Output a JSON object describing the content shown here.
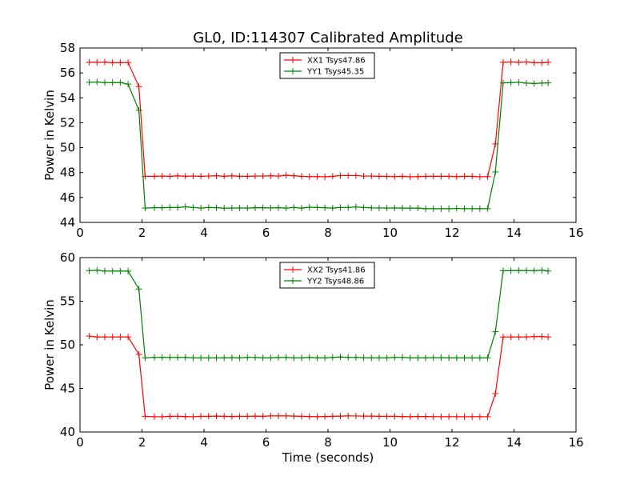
{
  "figure_title": "GL0, ID:114307 Calibrated Amplitude",
  "chart_data": [
    {
      "type": "line",
      "title": "GL0, ID:114307 Calibrated Amplitude",
      "xlabel": "",
      "ylabel": "Power in Kelvin",
      "xlim": [
        0,
        16
      ],
      "ylim": [
        44,
        58
      ],
      "xticks": [
        0,
        2,
        4,
        6,
        8,
        10,
        12,
        14,
        16
      ],
      "yticks": [
        44,
        46,
        48,
        50,
        52,
        54,
        56,
        58
      ],
      "legend_position": "top-center",
      "x": [
        0.3,
        0.55,
        0.8,
        1.05,
        1.3,
        1.55,
        1.9,
        2.1,
        2.4,
        2.65,
        2.9,
        3.15,
        3.4,
        3.65,
        3.9,
        4.15,
        4.4,
        4.65,
        4.9,
        5.15,
        5.4,
        5.65,
        5.9,
        6.15,
        6.4,
        6.65,
        6.9,
        7.15,
        7.4,
        7.65,
        7.9,
        8.15,
        8.4,
        8.65,
        8.9,
        9.15,
        9.4,
        9.65,
        9.9,
        10.15,
        10.4,
        10.65,
        10.9,
        11.15,
        11.4,
        11.65,
        11.9,
        12.15,
        12.4,
        12.65,
        12.9,
        13.15,
        13.4,
        13.65,
        13.9,
        14.15,
        14.4,
        14.65,
        14.9,
        15.1
      ],
      "series": [
        {
          "name": "XX1 Tsys47.86",
          "color": "#ff0000",
          "values": [
            56.85,
            56.85,
            56.86,
            56.82,
            56.82,
            56.84,
            54.9,
            47.7,
            47.7,
            47.72,
            47.7,
            47.74,
            47.7,
            47.72,
            47.7,
            47.72,
            47.74,
            47.7,
            47.74,
            47.7,
            47.7,
            47.72,
            47.72,
            47.74,
            47.72,
            47.78,
            47.74,
            47.7,
            47.68,
            47.68,
            47.66,
            47.7,
            47.76,
            47.76,
            47.76,
            47.72,
            47.72,
            47.7,
            47.7,
            47.68,
            47.7,
            47.66,
            47.68,
            47.7,
            47.7,
            47.7,
            47.7,
            47.68,
            47.7,
            47.7,
            47.66,
            47.68,
            50.3,
            56.85,
            56.88,
            56.85,
            56.88,
            56.82,
            56.82,
            56.85
          ]
        },
        {
          "name": "YY1 Tsys45.35",
          "color": "#008000",
          "values": [
            55.25,
            55.27,
            55.22,
            55.22,
            55.23,
            55.1,
            53.0,
            45.15,
            45.18,
            45.18,
            45.2,
            45.2,
            45.25,
            45.2,
            45.15,
            45.2,
            45.18,
            45.15,
            45.15,
            45.16,
            45.15,
            45.17,
            45.18,
            45.16,
            45.18,
            45.15,
            45.2,
            45.15,
            45.22,
            45.2,
            45.18,
            45.15,
            45.2,
            45.2,
            45.24,
            45.2,
            45.16,
            45.16,
            45.15,
            45.16,
            45.15,
            45.15,
            45.15,
            45.1,
            45.1,
            45.1,
            45.1,
            45.12,
            45.1,
            45.1,
            45.1,
            45.1,
            48.05,
            55.2,
            55.22,
            55.25,
            55.18,
            55.15,
            55.18,
            55.2
          ]
        }
      ]
    },
    {
      "type": "line",
      "title": "",
      "xlabel": "Time (seconds)",
      "ylabel": "Power in Kelvin",
      "xlim": [
        0,
        16
      ],
      "ylim": [
        40,
        60
      ],
      "xticks": [
        0,
        2,
        4,
        6,
        8,
        10,
        12,
        14,
        16
      ],
      "yticks": [
        40,
        45,
        50,
        55,
        60
      ],
      "legend_position": "top-center",
      "x": [
        0.3,
        0.55,
        0.8,
        1.05,
        1.3,
        1.55,
        1.9,
        2.1,
        2.4,
        2.65,
        2.9,
        3.15,
        3.4,
        3.65,
        3.9,
        4.15,
        4.4,
        4.65,
        4.9,
        5.15,
        5.4,
        5.65,
        5.9,
        6.15,
        6.4,
        6.65,
        6.9,
        7.15,
        7.4,
        7.65,
        7.9,
        8.15,
        8.4,
        8.65,
        8.9,
        9.15,
        9.4,
        9.65,
        9.9,
        10.15,
        10.4,
        10.65,
        10.9,
        11.15,
        11.4,
        11.65,
        11.9,
        12.15,
        12.4,
        12.65,
        12.9,
        13.15,
        13.4,
        13.65,
        13.9,
        14.15,
        14.4,
        14.65,
        14.9,
        15.1
      ],
      "series": [
        {
          "name": "XX2 Tsys41.86",
          "color": "#ff0000",
          "values": [
            51.0,
            50.9,
            50.9,
            50.9,
            50.9,
            50.9,
            48.9,
            41.8,
            41.75,
            41.75,
            41.8,
            41.8,
            41.78,
            41.75,
            41.8,
            41.8,
            41.82,
            41.8,
            41.78,
            41.8,
            41.8,
            41.82,
            41.8,
            41.85,
            41.85,
            41.85,
            41.82,
            41.8,
            41.78,
            41.76,
            41.78,
            41.8,
            41.82,
            41.85,
            41.84,
            41.82,
            41.82,
            41.8,
            41.8,
            41.8,
            41.78,
            41.76,
            41.78,
            41.78,
            41.76,
            41.76,
            41.76,
            41.76,
            41.75,
            41.76,
            41.76,
            41.75,
            44.4,
            50.9,
            50.9,
            50.9,
            50.9,
            50.95,
            50.95,
            50.9
          ]
        },
        {
          "name": "YY2 Tsys48.86",
          "color": "#008000",
          "values": [
            58.5,
            58.55,
            58.45,
            58.45,
            58.45,
            58.45,
            56.4,
            48.5,
            48.55,
            48.55,
            48.55,
            48.55,
            48.55,
            48.5,
            48.5,
            48.5,
            48.5,
            48.5,
            48.52,
            48.5,
            48.55,
            48.55,
            48.5,
            48.5,
            48.55,
            48.55,
            48.5,
            48.5,
            48.55,
            48.5,
            48.5,
            48.55,
            48.6,
            48.55,
            48.55,
            48.52,
            48.5,
            48.5,
            48.5,
            48.55,
            48.55,
            48.5,
            48.5,
            48.5,
            48.52,
            48.52,
            48.5,
            48.5,
            48.5,
            48.5,
            48.5,
            48.5,
            51.5,
            58.5,
            58.5,
            58.52,
            58.5,
            58.5,
            58.55,
            58.45
          ]
        }
      ]
    }
  ]
}
